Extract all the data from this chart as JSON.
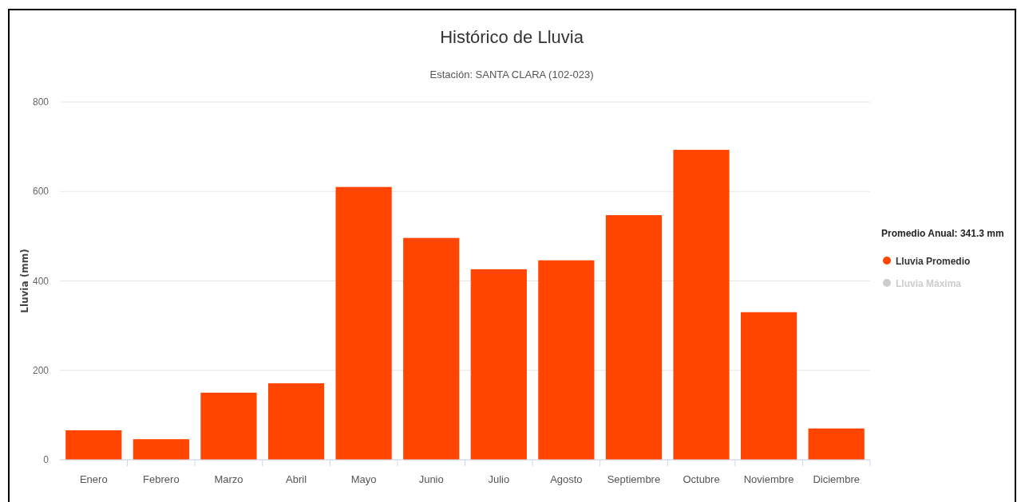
{
  "chart_data": {
    "type": "bar",
    "title": "Histórico de Lluvia",
    "subtitle": "Estación: SANTA CLARA (102-023)",
    "ylabel": "Lluvia (mm)",
    "legend_title": "Promedio Anual: 341.3 mm",
    "categories": [
      "Enero",
      "Febrero",
      "Marzo",
      "Abril",
      "Mayo",
      "Junio",
      "Julio",
      "Agosto",
      "Septiembre",
      "Octubre",
      "Noviembre",
      "Diciembre"
    ],
    "series": [
      {
        "name": "Lluvia Promedio",
        "color": "#ff4500",
        "values": [
          66,
          46,
          150,
          171,
          610,
          496,
          426,
          446,
          547,
          693,
          330,
          70
        ]
      },
      {
        "name": "Lluvia Máxima",
        "color": "#cccccc",
        "values": [
          null,
          null,
          null,
          null,
          null,
          null,
          null,
          null,
          null,
          null,
          null,
          null
        ]
      }
    ],
    "ylim": [
      0,
      800
    ],
    "yticks": [
      0,
      200,
      400,
      600,
      800
    ],
    "grid": "y",
    "legend": "right"
  }
}
